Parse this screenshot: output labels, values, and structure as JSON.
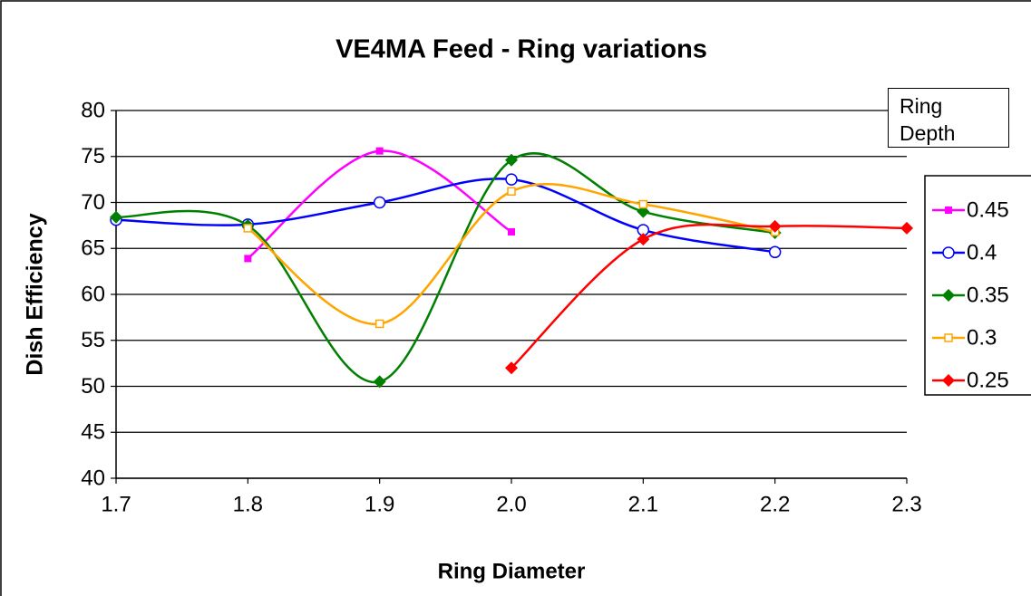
{
  "chart_data": {
    "type": "line",
    "title": "VE4MA Feed - Ring variations",
    "x_label": "Ring Diameter",
    "y_label": "Dish Efficiency",
    "legend_title": "Ring Depth",
    "x": [
      1.7,
      1.8,
      1.9,
      2.0,
      2.1,
      2.2,
      2.3
    ],
    "series": [
      {
        "name": "0.45",
        "color": "#ff00ff",
        "marker": "square",
        "values": [
          null,
          63.9,
          75.6,
          66.8,
          null,
          null,
          null
        ]
      },
      {
        "name": "0.4",
        "color": "#0000ff",
        "marker": "open-circle",
        "values": [
          68.1,
          67.6,
          70.0,
          72.5,
          67.0,
          64.6,
          null
        ]
      },
      {
        "name": "0.35",
        "color": "#008000",
        "marker": "diamond",
        "values": [
          68.4,
          67.5,
          50.5,
          74.6,
          69.0,
          66.7,
          null
        ]
      },
      {
        "name": "0.3",
        "color": "#ffa500",
        "marker": "open-square",
        "values": [
          null,
          67.2,
          56.8,
          71.2,
          69.8,
          66.8,
          null
        ]
      },
      {
        "name": "0.25",
        "color": "#ff0000",
        "marker": "diamond",
        "values": [
          null,
          null,
          null,
          52.0,
          66.0,
          67.4,
          67.2
        ]
      }
    ],
    "smooth": true,
    "xlim": [
      1.7,
      2.3
    ],
    "xticks": [
      1.7,
      1.8,
      1.9,
      {
        "value": 2.0,
        "label": "2.0"
      },
      2.1,
      2.2,
      2.3
    ],
    "ylim": [
      40,
      80
    ],
    "yticks": [
      40,
      45,
      50,
      55,
      60,
      65,
      70,
      75,
      80
    ],
    "grid": true,
    "legend": "right"
  }
}
